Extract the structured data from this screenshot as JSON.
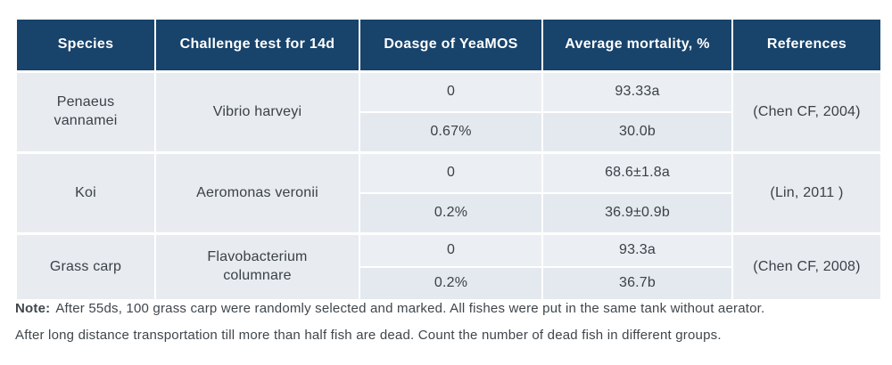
{
  "table": {
    "columns": [
      "Species",
      "Challenge test for 14d",
      "Doasge of YeaMOS",
      "Average mortality, %",
      "References"
    ],
    "rows": [
      {
        "species": "Penaeus vannamei",
        "challenge": "Vibrio harveyi",
        "sub": [
          {
            "dosage": "0",
            "mortality": "93.33a"
          },
          {
            "dosage": "0.67%",
            "mortality": "30.0b"
          }
        ],
        "reference": "(Chen CF, 2004)"
      },
      {
        "species": "Koi",
        "challenge": "Aeromonas veronii",
        "sub": [
          {
            "dosage": "0",
            "mortality": "68.6±1.8a"
          },
          {
            "dosage": "0.2%",
            "mortality": "36.9±0.9b"
          }
        ],
        "reference": "(Lin, 2011 )"
      },
      {
        "species": "Grass carp",
        "challenge": "Flavobacterium columnare",
        "sub": [
          {
            "dosage": "0",
            "mortality": "93.3a"
          },
          {
            "dosage": "0.2%",
            "mortality": "36.7b"
          }
        ],
        "reference": "(Chen CF, 2008)"
      }
    ]
  },
  "note": {
    "label": "Note:",
    "line1": "After 55ds, 100 grass carp were randomly selected and marked.  All fishes were put in the same tank without aerator.",
    "line2": "After long distance transportation till more than half fish are dead. Count the number of dead fish in different groups."
  },
  "colors": {
    "header_bg": "#18436b",
    "header_text": "#ffffff",
    "row_light": "#ebeff4",
    "row_dark": "#e3e9ef",
    "row_span": "#e8ecf1",
    "body_text": "#3a4147",
    "grid_line": "#ffffff"
  }
}
